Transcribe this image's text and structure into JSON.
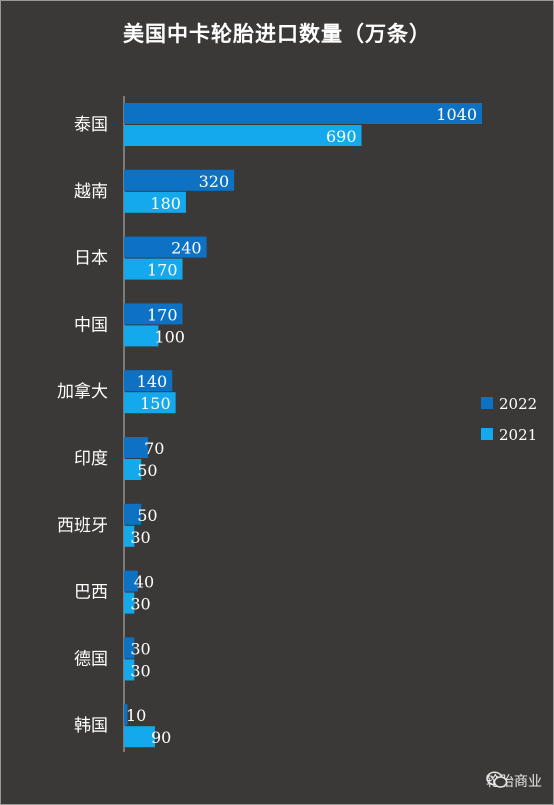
{
  "title": "美国中卡轮胎进口数量（万条）",
  "watermark": {
    "text": "轮胎商业",
    "icon": "wechat-icon"
  },
  "colors": {
    "background": "#3b3938",
    "series_2022": "#0e72c4",
    "series_2021": "#14a9ec",
    "text": "#ffffff"
  },
  "chart_data": {
    "type": "bar",
    "orientation": "horizontal",
    "title": "美国中卡轮胎进口数量（万条）",
    "categories": [
      "泰国",
      "越南",
      "日本",
      "中国",
      "加拿大",
      "印度",
      "西班牙",
      "巴西",
      "德国",
      "韩国"
    ],
    "series": [
      {
        "name": "2022",
        "color": "#0e72c4",
        "values": [
          1040,
          320,
          240,
          170,
          140,
          70,
          50,
          40,
          30,
          10
        ]
      },
      {
        "name": "2021",
        "color": "#14a9ec",
        "values": [
          690,
          180,
          170,
          100,
          150,
          50,
          30,
          30,
          30,
          90
        ]
      }
    ],
    "xlim": [
      0,
      1040
    ],
    "legend": "right",
    "grid": false
  }
}
